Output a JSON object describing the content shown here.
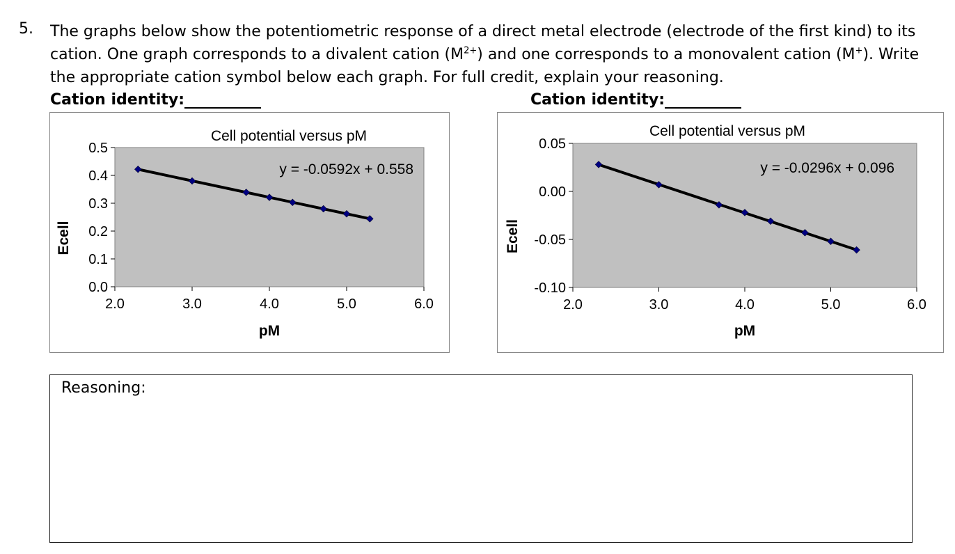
{
  "question": {
    "number": "5.",
    "text_part1": "The graphs below show the potentiometric response of a direct metal electrode (electrode of the first kind) to its cation. One graph corresponds to a divalent cation (M",
    "sup1": "2+",
    "text_part2": ") and one corresponds to a monovalent cation (M",
    "sup2": "+",
    "text_part3": "). Write the appropriate cation symbol below each graph. For full credit, explain your reasoning."
  },
  "cation_label": "Cation identity:",
  "reasoning_label": "Reasoning:",
  "chart_data": [
    {
      "type": "scatter",
      "title": "Cell potential versus pM",
      "xlabel": "pM",
      "ylabel": "Ecell",
      "xlim": [
        2.0,
        6.0
      ],
      "ylim": [
        0.0,
        0.5
      ],
      "xticks": [
        "2.0",
        "3.0",
        "4.0",
        "5.0",
        "6.0"
      ],
      "yticks": [
        "0.0",
        "0.1",
        "0.2",
        "0.3",
        "0.4",
        "0.5"
      ],
      "x": [
        2.3,
        3.0,
        3.7,
        4.0,
        4.3,
        4.7,
        5.0,
        5.3
      ],
      "y": [
        0.422,
        0.38,
        0.339,
        0.321,
        0.303,
        0.28,
        0.262,
        0.244
      ],
      "trendline": {
        "slope": -0.0592,
        "intercept": 0.558,
        "label": "y = -0.0592x + 0.558"
      },
      "grid": false,
      "plot_bg": "#c0c0c0",
      "marker_color": "#000080"
    },
    {
      "type": "scatter",
      "title": "Cell potential versus pM",
      "xlabel": "pM",
      "ylabel": "Ecell",
      "xlim": [
        2.0,
        6.0
      ],
      "ylim": [
        -0.1,
        0.05
      ],
      "xticks": [
        "2.0",
        "3.0",
        "4.0",
        "5.0",
        "6.0"
      ],
      "yticks": [
        "-0.10",
        "-0.05",
        "0.00",
        "0.05"
      ],
      "x": [
        2.3,
        3.0,
        3.7,
        4.0,
        4.3,
        4.7,
        5.0,
        5.3
      ],
      "y": [
        0.028,
        0.007,
        -0.014,
        -0.022,
        -0.031,
        -0.043,
        -0.052,
        -0.061
      ],
      "trendline": {
        "slope": -0.0296,
        "intercept": 0.096,
        "label": "y = -0.0296x + 0.096"
      },
      "grid": false,
      "plot_bg": "#c0c0c0",
      "marker_color": "#000080"
    }
  ]
}
